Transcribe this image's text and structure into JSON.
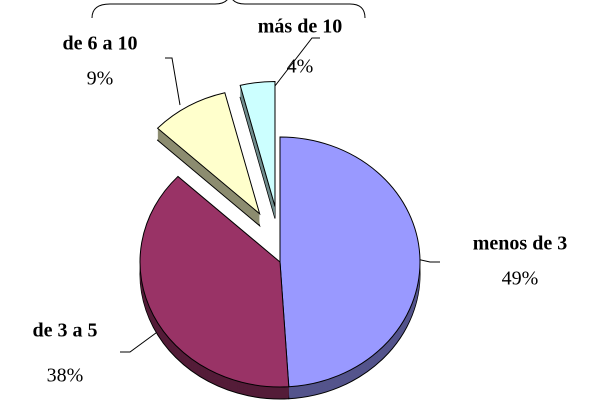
{
  "chart_data": {
    "type": "pie",
    "categories": [
      "menos de 3",
      "de 3 a 5",
      "de 6 a 10",
      "más de 10"
    ],
    "values": [
      49,
      38,
      9,
      4
    ],
    "value_labels": [
      "49%",
      "38%",
      "9%",
      "4%"
    ],
    "colors": [
      "#9999ff",
      "#993366",
      "#ffffcc",
      "#ccffff"
    ],
    "explode": [
      false,
      false,
      true,
      true
    ]
  }
}
